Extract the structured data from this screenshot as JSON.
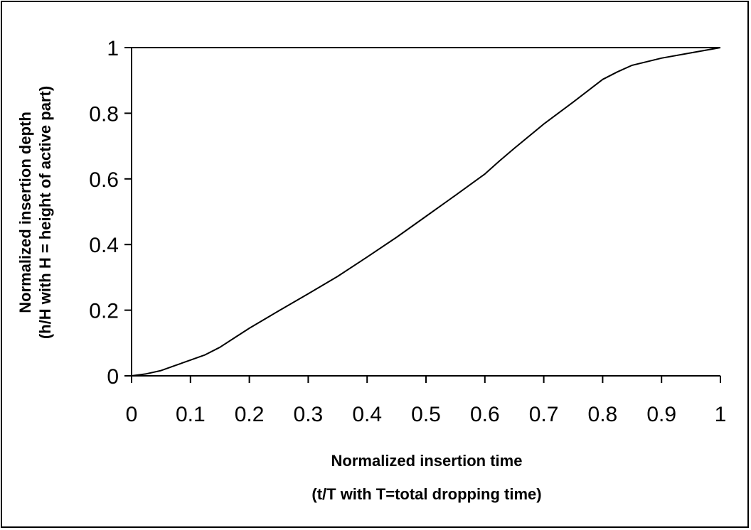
{
  "chart_data": {
    "type": "line",
    "title": "",
    "xlabel": [
      "Normalized insertion time",
      "(t/T with T=total dropping time)"
    ],
    "ylabel": [
      "Normalized insertion depth",
      "(h/H with H = height of active part)"
    ],
    "xlim": [
      0,
      1
    ],
    "ylim": [
      0,
      1
    ],
    "x_ticks": [
      "0",
      "0.1",
      "0.2",
      "0.3",
      "0.4",
      "0.5",
      "0.6",
      "0.7",
      "0.8",
      "0.9",
      "1"
    ],
    "y_ticks": [
      "0",
      "0.2",
      "0.4",
      "0.6",
      "0.8",
      "1"
    ],
    "grid": false,
    "series": [
      {
        "color": "#000000",
        "x": [
          0,
          0.025,
          0.05,
          0.075,
          0.1,
          0.125,
          0.15,
          0.175,
          0.2,
          0.25,
          0.3,
          0.35,
          0.4,
          0.45,
          0.5,
          0.55,
          0.6,
          0.625,
          0.65,
          0.7,
          0.75,
          0.8,
          0.825,
          0.85,
          0.9,
          0.95,
          1
        ],
        "y": [
          0,
          0.006,
          0.016,
          0.032,
          0.048,
          0.064,
          0.087,
          0.116,
          0.145,
          0.198,
          0.25,
          0.303,
          0.362,
          0.422,
          0.486,
          0.55,
          0.615,
          0.655,
          0.693,
          0.767,
          0.834,
          0.903,
          0.926,
          0.946,
          0.968,
          0.984,
          1.0
        ]
      }
    ]
  }
}
